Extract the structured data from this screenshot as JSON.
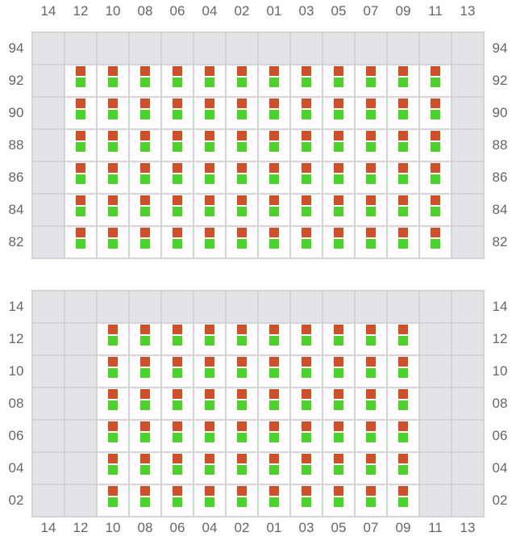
{
  "colors": {
    "orange": "#cc5229",
    "green": "#4cd12a",
    "inactive": "#e4e4e7",
    "active": "#ffffff"
  },
  "grids": [
    {
      "columns": [
        "14",
        "12",
        "10",
        "08",
        "06",
        "04",
        "02",
        "01",
        "03",
        "05",
        "07",
        "09",
        "11",
        "13"
      ],
      "rows": [
        "94",
        "92",
        "90",
        "88",
        "86",
        "84",
        "82"
      ],
      "active_columns": [
        "12",
        "10",
        "08",
        "06",
        "04",
        "02",
        "01",
        "03",
        "05",
        "07",
        "09",
        "11"
      ],
      "active_rows": [
        "92",
        "90",
        "88",
        "86",
        "84",
        "82"
      ],
      "column_labels": "top"
    },
    {
      "columns": [
        "14",
        "12",
        "10",
        "08",
        "06",
        "04",
        "02",
        "01",
        "03",
        "05",
        "07",
        "09",
        "11",
        "13"
      ],
      "rows": [
        "14",
        "12",
        "10",
        "08",
        "06",
        "04",
        "02"
      ],
      "active_columns": [
        "10",
        "08",
        "06",
        "04",
        "02",
        "01",
        "03",
        "05",
        "07",
        "09"
      ],
      "active_rows": [
        "12",
        "10",
        "08",
        "06",
        "04",
        "02"
      ],
      "column_labels": "bottom"
    }
  ]
}
